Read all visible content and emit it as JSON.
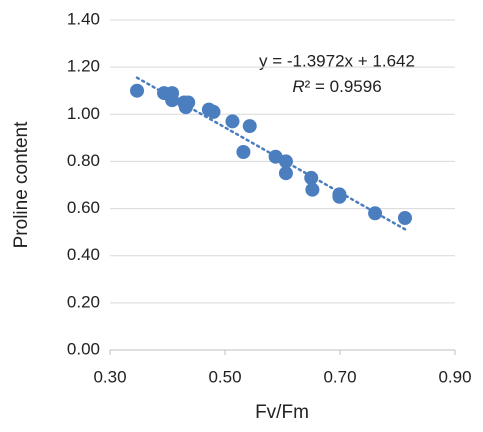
{
  "chart_data": {
    "type": "scatter",
    "x_label": "Fv/Fm",
    "y_label": "Proline content",
    "series": [
      {
        "color": "#4a7ebf",
        "x": [
          0.347,
          0.394,
          0.408,
          0.408,
          0.429,
          0.436,
          0.432,
          0.472,
          0.48,
          0.513,
          0.543,
          0.532,
          0.588,
          0.606,
          0.606,
          0.65,
          0.652,
          0.699,
          0.699,
          0.761,
          0.813
        ],
        "values": [
          1.1,
          1.09,
          1.09,
          1.06,
          1.05,
          1.05,
          1.03,
          1.02,
          1.01,
          0.97,
          0.95,
          0.84,
          0.82,
          0.8,
          0.75,
          0.73,
          0.68,
          0.66,
          0.65,
          0.58,
          0.56
        ]
      }
    ],
    "trendline": {
      "style": "dotted",
      "color": "#4a7ebf",
      "equation": "y = -1.3972x + 1.642",
      "r_squared_symbol": "R",
      "r_squared_rest": "² = 0.9596"
    },
    "xlim": [
      0.3,
      0.9
    ],
    "xticks": [
      {
        "value": 0.3,
        "label": "0.30"
      },
      {
        "value": 0.5,
        "label": "0.50"
      },
      {
        "value": 0.7,
        "label": "0.70"
      },
      {
        "value": 0.9,
        "label": "0.90"
      }
    ],
    "ylim": [
      0,
      1.4
    ],
    "yticks": [
      {
        "value": 0,
        "label": "0.00"
      },
      {
        "value": 0.2,
        "label": "0.20"
      },
      {
        "value": 0.4,
        "label": "0.40"
      },
      {
        "value": 0.6,
        "label": "0.60"
      },
      {
        "value": 0.8,
        "label": "0.80"
      },
      {
        "value": 1.0,
        "label": "1.00"
      },
      {
        "value": 1.2,
        "label": "1.20"
      },
      {
        "value": 1.4,
        "label": "1.40"
      }
    ],
    "grid": true
  }
}
